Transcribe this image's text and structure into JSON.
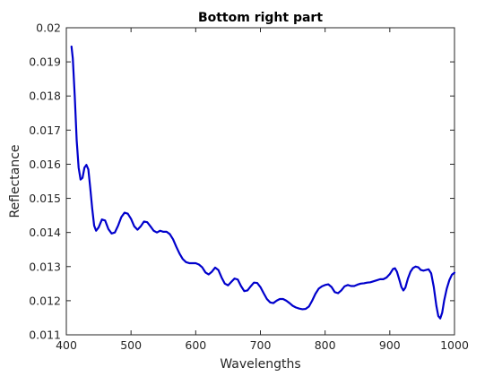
{
  "chart_data": {
    "type": "line",
    "title": "Bottom right part",
    "xlabel": "Wavelengths",
    "ylabel": "Reflectance",
    "xlim": [
      400,
      1000
    ],
    "ylim": [
      0.011,
      0.02
    ],
    "xticks": [
      400,
      500,
      600,
      700,
      800,
      900,
      1000
    ],
    "xtick_labels": [
      "400",
      "500",
      "600",
      "700",
      "800",
      "900",
      "1000"
    ],
    "yticks": [
      0.011,
      0.012,
      0.013,
      0.014,
      0.015,
      0.016,
      0.017,
      0.018,
      0.019,
      0.02
    ],
    "ytick_labels": [
      "0.011",
      "0.012",
      "0.013",
      "0.014",
      "0.015",
      "0.016",
      "0.017",
      "0.018",
      "0.019",
      "0.02"
    ],
    "grid": false,
    "series": [
      {
        "color": "#0000cc",
        "points": [
          [
            408,
            0.01945
          ],
          [
            410,
            0.0191
          ],
          [
            413,
            0.018
          ],
          [
            416,
            0.0167
          ],
          [
            419,
            0.0159
          ],
          [
            422,
            0.01555
          ],
          [
            425,
            0.0156
          ],
          [
            428,
            0.0159
          ],
          [
            431,
            0.01598
          ],
          [
            434,
            0.01585
          ],
          [
            437,
            0.0153
          ],
          [
            440,
            0.0147
          ],
          [
            443,
            0.0142
          ],
          [
            446,
            0.01405
          ],
          [
            450,
            0.01415
          ],
          [
            455,
            0.01438
          ],
          [
            460,
            0.01435
          ],
          [
            465,
            0.0141
          ],
          [
            470,
            0.01397
          ],
          [
            475,
            0.014
          ],
          [
            480,
            0.0142
          ],
          [
            485,
            0.01445
          ],
          [
            490,
            0.01458
          ],
          [
            495,
            0.01455
          ],
          [
            500,
            0.0144
          ],
          [
            505,
            0.01418
          ],
          [
            510,
            0.01408
          ],
          [
            515,
            0.01418
          ],
          [
            520,
            0.01432
          ],
          [
            525,
            0.0143
          ],
          [
            530,
            0.01418
          ],
          [
            535,
            0.01405
          ],
          [
            540,
            0.014
          ],
          [
            545,
            0.01405
          ],
          [
            550,
            0.01402
          ],
          [
            555,
            0.01402
          ],
          [
            560,
            0.01395
          ],
          [
            565,
            0.0138
          ],
          [
            570,
            0.01358
          ],
          [
            575,
            0.01338
          ],
          [
            580,
            0.01322
          ],
          [
            585,
            0.01313
          ],
          [
            590,
            0.0131
          ],
          [
            595,
            0.0131
          ],
          [
            600,
            0.0131
          ],
          [
            605,
            0.01306
          ],
          [
            610,
            0.01298
          ],
          [
            615,
            0.01283
          ],
          [
            620,
            0.01277
          ],
          [
            625,
            0.01285
          ],
          [
            630,
            0.01297
          ],
          [
            635,
            0.0129
          ],
          [
            640,
            0.01268
          ],
          [
            645,
            0.0125
          ],
          [
            650,
            0.01245
          ],
          [
            655,
            0.01255
          ],
          [
            660,
            0.01265
          ],
          [
            665,
            0.01262
          ],
          [
            670,
            0.01243
          ],
          [
            675,
            0.01228
          ],
          [
            680,
            0.0123
          ],
          [
            685,
            0.01242
          ],
          [
            690,
            0.01253
          ],
          [
            695,
            0.01252
          ],
          [
            700,
            0.0124
          ],
          [
            705,
            0.01222
          ],
          [
            710,
            0.01205
          ],
          [
            715,
            0.01195
          ],
          [
            720,
            0.01193
          ],
          [
            725,
            0.012
          ],
          [
            730,
            0.01205
          ],
          [
            735,
            0.01205
          ],
          [
            740,
            0.012
          ],
          [
            745,
            0.01193
          ],
          [
            750,
            0.01185
          ],
          [
            755,
            0.0118
          ],
          [
            760,
            0.01177
          ],
          [
            765,
            0.01175
          ],
          [
            770,
            0.01176
          ],
          [
            775,
            0.01183
          ],
          [
            780,
            0.012
          ],
          [
            785,
            0.0122
          ],
          [
            790,
            0.01235
          ],
          [
            795,
            0.01242
          ],
          [
            800,
            0.01246
          ],
          [
            805,
            0.01248
          ],
          [
            810,
            0.0124
          ],
          [
            815,
            0.01225
          ],
          [
            820,
            0.01222
          ],
          [
            825,
            0.0123
          ],
          [
            830,
            0.01242
          ],
          [
            835,
            0.01246
          ],
          [
            840,
            0.01243
          ],
          [
            845,
            0.01243
          ],
          [
            850,
            0.01247
          ],
          [
            855,
            0.0125
          ],
          [
            860,
            0.01251
          ],
          [
            865,
            0.01253
          ],
          [
            870,
            0.01254
          ],
          [
            875,
            0.01257
          ],
          [
            880,
            0.0126
          ],
          [
            885,
            0.01263
          ],
          [
            890,
            0.01263
          ],
          [
            895,
            0.01268
          ],
          [
            900,
            0.01278
          ],
          [
            905,
            0.01293
          ],
          [
            908,
            0.01295
          ],
          [
            911,
            0.01285
          ],
          [
            915,
            0.0126
          ],
          [
            918,
            0.0124
          ],
          [
            921,
            0.0123
          ],
          [
            924,
            0.01238
          ],
          [
            928,
            0.01265
          ],
          [
            932,
            0.01285
          ],
          [
            936,
            0.01296
          ],
          [
            940,
            0.013
          ],
          [
            944,
            0.01298
          ],
          [
            948,
            0.0129
          ],
          [
            952,
            0.01288
          ],
          [
            956,
            0.0129
          ],
          [
            960,
            0.01292
          ],
          [
            964,
            0.0128
          ],
          [
            968,
            0.0124
          ],
          [
            972,
            0.01185
          ],
          [
            975,
            0.01155
          ],
          [
            978,
            0.01148
          ],
          [
            981,
            0.01165
          ],
          [
            984,
            0.012
          ],
          [
            988,
            0.01235
          ],
          [
            992,
            0.0126
          ],
          [
            996,
            0.01276
          ],
          [
            1000,
            0.01282
          ]
        ]
      }
    ]
  }
}
